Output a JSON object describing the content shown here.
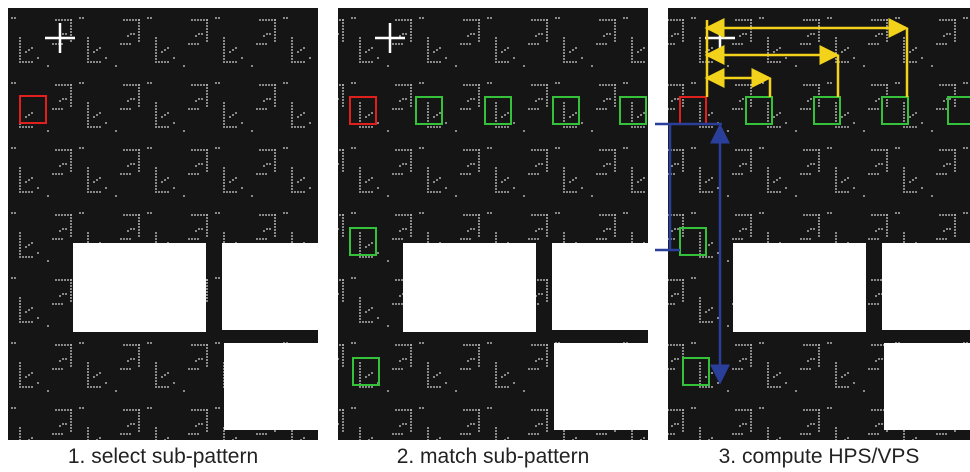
{
  "panels": [
    {
      "caption": "1. select sub-pattern"
    },
    {
      "caption": "2. match sub-pattern"
    },
    {
      "caption": "3. compute HPS/VPS"
    }
  ]
}
